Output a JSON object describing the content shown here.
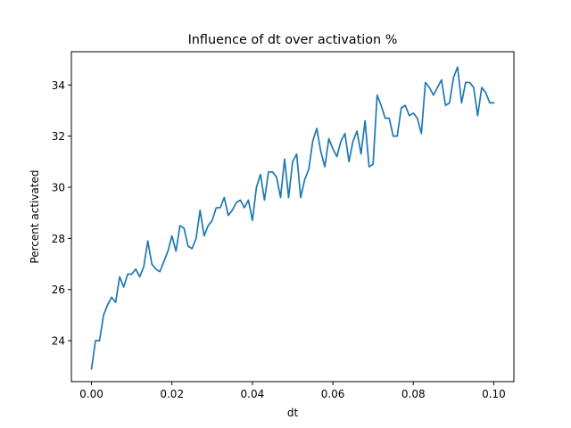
{
  "chart_data": {
    "type": "line",
    "title": "Influence of dt over activation %",
    "xlabel": "dt",
    "ylabel": "Percent activated",
    "xlim": [
      -0.005,
      0.105
    ],
    "ylim": [
      22.4,
      35.3
    ],
    "xticks": [
      0.0,
      0.02,
      0.04,
      0.06,
      0.08,
      0.1
    ],
    "xtick_labels": [
      "0.00",
      "0.02",
      "0.04",
      "0.06",
      "0.08",
      "0.10"
    ],
    "yticks": [
      24,
      26,
      28,
      30,
      32,
      34
    ],
    "ytick_labels": [
      "24",
      "26",
      "28",
      "30",
      "32",
      "34"
    ],
    "grid": false,
    "series": [
      {
        "color": "#1f77b4",
        "x": [
          0.0,
          0.001,
          0.002,
          0.003,
          0.004,
          0.005,
          0.006,
          0.007,
          0.008,
          0.009,
          0.01,
          0.011,
          0.012,
          0.013,
          0.014,
          0.015,
          0.016,
          0.017,
          0.018,
          0.019,
          0.02,
          0.021,
          0.022,
          0.023,
          0.024,
          0.025,
          0.026,
          0.027,
          0.028,
          0.029,
          0.03,
          0.031,
          0.032,
          0.033,
          0.034,
          0.035,
          0.036,
          0.037,
          0.038,
          0.039,
          0.04,
          0.041,
          0.042,
          0.043,
          0.044,
          0.045,
          0.046,
          0.047,
          0.048,
          0.049,
          0.05,
          0.051,
          0.052,
          0.053,
          0.054,
          0.055,
          0.056,
          0.057,
          0.058,
          0.059,
          0.06,
          0.061,
          0.062,
          0.063,
          0.064,
          0.065,
          0.066,
          0.067,
          0.068,
          0.069,
          0.07,
          0.071,
          0.072,
          0.073,
          0.074,
          0.075,
          0.076,
          0.077,
          0.078,
          0.079,
          0.08,
          0.081,
          0.082,
          0.083,
          0.084,
          0.085,
          0.086,
          0.087,
          0.088,
          0.089,
          0.09,
          0.091,
          0.092,
          0.093,
          0.094,
          0.095,
          0.096,
          0.097,
          0.098,
          0.099,
          0.1
        ],
        "y": [
          22.9,
          24.0,
          24.0,
          25.0,
          25.4,
          25.7,
          25.5,
          26.5,
          26.1,
          26.6,
          26.6,
          26.8,
          26.5,
          26.9,
          27.9,
          27.0,
          26.8,
          26.7,
          27.1,
          27.5,
          28.1,
          27.5,
          28.5,
          28.4,
          27.7,
          27.6,
          28.0,
          29.1,
          28.1,
          28.5,
          28.7,
          29.2,
          29.2,
          29.6,
          28.9,
          29.1,
          29.4,
          29.5,
          29.2,
          29.5,
          28.7,
          30.0,
          30.5,
          29.5,
          30.6,
          30.6,
          30.4,
          29.6,
          31.1,
          29.6,
          31.0,
          31.3,
          29.6,
          30.3,
          30.7,
          31.8,
          32.3,
          31.4,
          30.8,
          31.9,
          31.5,
          31.2,
          31.8,
          32.1,
          31.0,
          31.8,
          32.2,
          31.3,
          32.6,
          30.8,
          30.9,
          33.6,
          33.2,
          32.7,
          32.7,
          32.0,
          32.0,
          33.1,
          33.2,
          32.8,
          32.9,
          32.7,
          32.1,
          34.1,
          33.9,
          33.6,
          33.9,
          34.2,
          33.2,
          33.3,
          34.3,
          34.7,
          33.3,
          34.1,
          34.1,
          33.9,
          32.8,
          33.9,
          33.7,
          33.3,
          33.3
        ]
      }
    ]
  }
}
